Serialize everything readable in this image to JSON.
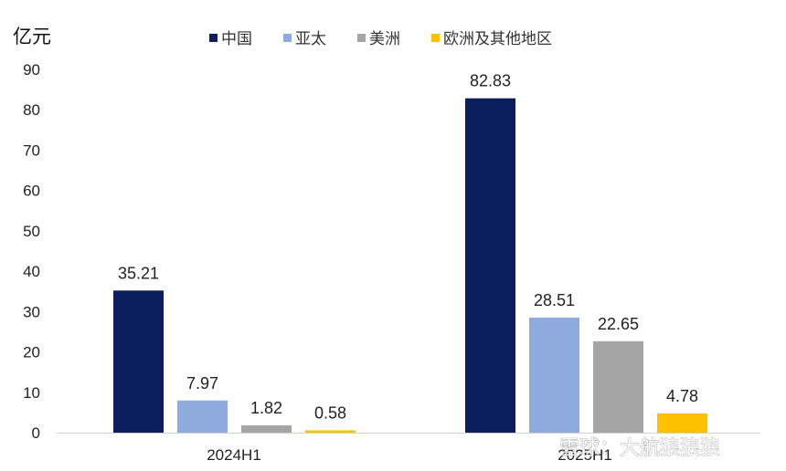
{
  "chart_data": {
    "type": "bar",
    "unit": "亿元",
    "categories": [
      "2024H1",
      "2025H1"
    ],
    "series": [
      {
        "name": "中国",
        "color": "#0b1f5c",
        "values": [
          35.21,
          82.83
        ],
        "labels": [
          "35.21",
          "82.83"
        ]
      },
      {
        "name": "亚太",
        "color": "#8faadc",
        "values": [
          7.97,
          28.51
        ],
        "labels": [
          "7.97",
          "28.51"
        ]
      },
      {
        "name": "美洲",
        "color": "#a5a5a5",
        "values": [
          1.82,
          22.65
        ],
        "labels": [
          "1.82",
          "22.65"
        ]
      },
      {
        "name": "欧洲及其他地区",
        "color": "#ffc000",
        "values": [
          0.58,
          4.78
        ],
        "labels": [
          "0.58",
          "4.78"
        ]
      }
    ],
    "ylim": [
      0,
      90
    ],
    "yticks": [
      "0",
      "10",
      "20",
      "30",
      "40",
      "50",
      "60",
      "70",
      "80",
      "90"
    ],
    "grid": false,
    "legend": "top"
  },
  "watermark": "雪球：大航狼狼狼"
}
